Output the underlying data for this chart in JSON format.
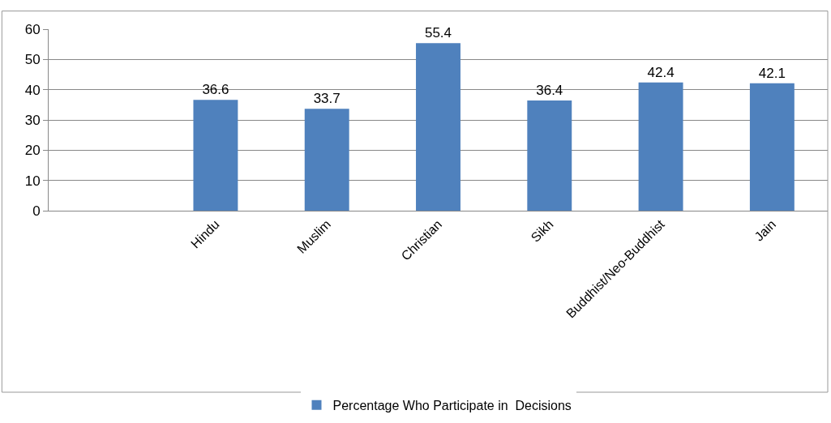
{
  "chart_data": {
    "type": "bar",
    "categories": [
      null,
      "Hindu",
      "Muslim",
      "Christian",
      "Sikh",
      "Buddhist/Neo-Buddhist",
      "Jain"
    ],
    "series": [
      {
        "name": "Percentage Who Participate in  Decisions",
        "color": "#4f81bd",
        "values": [
          null,
          36.6,
          33.7,
          55.4,
          36.4,
          42.4,
          42.1
        ]
      }
    ],
    "ylim": [
      0,
      60
    ],
    "yticks": [
      0,
      10,
      20,
      30,
      40,
      50,
      60
    ],
    "grid": "y",
    "legend": "bottom",
    "data_labels": true
  }
}
